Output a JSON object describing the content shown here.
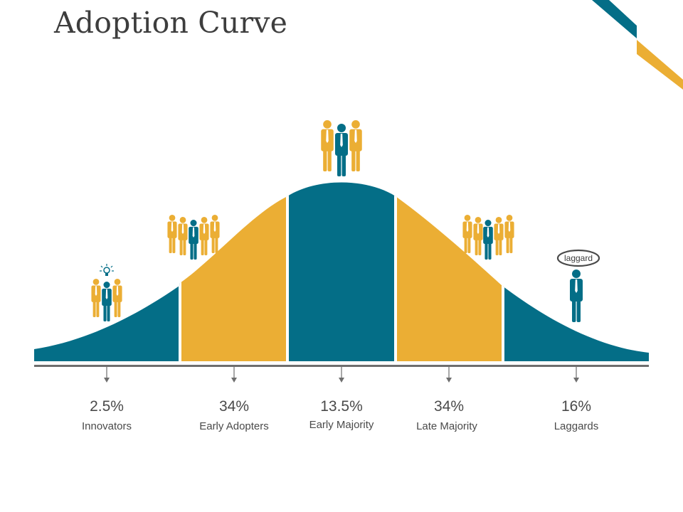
{
  "title": "Adoption Curve",
  "colors": {
    "teal": "#046e87",
    "gold": "#ebae34",
    "axis": "#6e6e6e",
    "text": "#4a4a4a"
  },
  "chart_data": {
    "type": "area",
    "title": "Adoption Curve",
    "categories": [
      "Innovators",
      "Early Adopters",
      "Early Majority",
      "Late Majority",
      "Laggards"
    ],
    "values": [
      2.5,
      34,
      13.5,
      34,
      16
    ],
    "value_labels": [
      "2.5%",
      "34%",
      "13.5%",
      "34%",
      "16%"
    ],
    "segment_colors": [
      "teal",
      "gold",
      "teal",
      "gold",
      "teal"
    ],
    "segment_icons": [
      "innovator-lightbulb-group",
      "five-person-group",
      "three-person-group",
      "five-person-group",
      "single-person"
    ],
    "annotations": [
      {
        "segment": "Laggards",
        "text": "laggard"
      }
    ]
  }
}
